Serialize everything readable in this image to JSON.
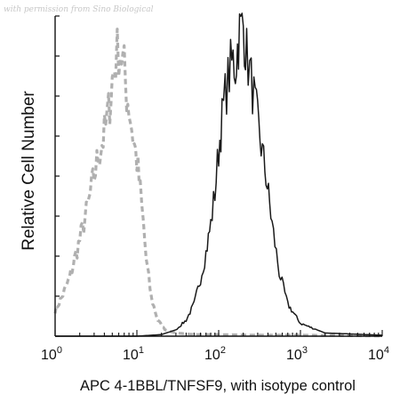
{
  "watermark": "with permission from Sino Biological",
  "chart_data": {
    "type": "line",
    "title": "",
    "xlabel": "APC 4-1BBL/TNFSF9, with isotype control",
    "ylabel": "Relative Cell Number",
    "xscale": "log",
    "xlim": [
      1,
      10000
    ],
    "ylim": [
      0,
      100
    ],
    "x_ticks": [
      {
        "base": "10",
        "exp": "0"
      },
      {
        "base": "10",
        "exp": "1"
      },
      {
        "base": "10",
        "exp": "2"
      },
      {
        "base": "10",
        "exp": "3"
      },
      {
        "base": "10",
        "exp": "4"
      }
    ],
    "grid": false,
    "legend": "none",
    "series": [
      {
        "role": "isotype-control",
        "color": "#b0b0b0",
        "style": "dashed",
        "x": [
          1.0,
          1.2,
          1.5,
          2.0,
          2.5,
          3.0,
          3.5,
          4.0,
          4.5,
          5.0,
          5.5,
          6.0,
          6.5,
          7.0,
          7.5,
          8.0,
          9.0,
          10.0,
          11.0,
          12.0,
          13.0,
          15.0,
          18.0,
          22.0,
          30.0,
          50.0,
          100.0,
          300.0,
          1000.0,
          3000.0,
          10000.0
        ],
        "y": [
          8,
          12,
          18,
          30,
          40,
          50,
          58,
          63,
          70,
          80,
          86,
          90,
          88,
          83,
          76,
          72,
          62,
          55,
          45,
          35,
          24,
          12,
          5,
          2,
          1,
          0.5,
          0.5,
          0.3,
          0.3,
          0.2,
          0.1
        ]
      },
      {
        "role": "4-1BBL/TNFSF9",
        "color": "#1a1a1a",
        "style": "solid",
        "x": [
          1.0,
          10.0,
          20.0,
          30.0,
          40.0,
          50.0,
          60.0,
          70.0,
          80.0,
          90.0,
          100.0,
          110.0,
          120.0,
          130.0,
          140.0,
          150.0,
          160.0,
          170.0,
          180.0,
          200.0,
          220.0,
          250.0,
          280.0,
          320.0,
          380.0,
          450.0,
          550.0,
          700.0,
          1000.0,
          2000.0,
          10000.0
        ],
        "y": [
          0,
          0,
          0.5,
          2,
          5,
          10,
          18,
          26,
          35,
          45,
          58,
          68,
          75,
          80,
          84,
          86,
          84,
          90,
          95,
          97,
          88,
          80,
          72,
          62,
          50,
          35,
          20,
          10,
          4,
          1,
          0.3
        ]
      }
    ]
  }
}
